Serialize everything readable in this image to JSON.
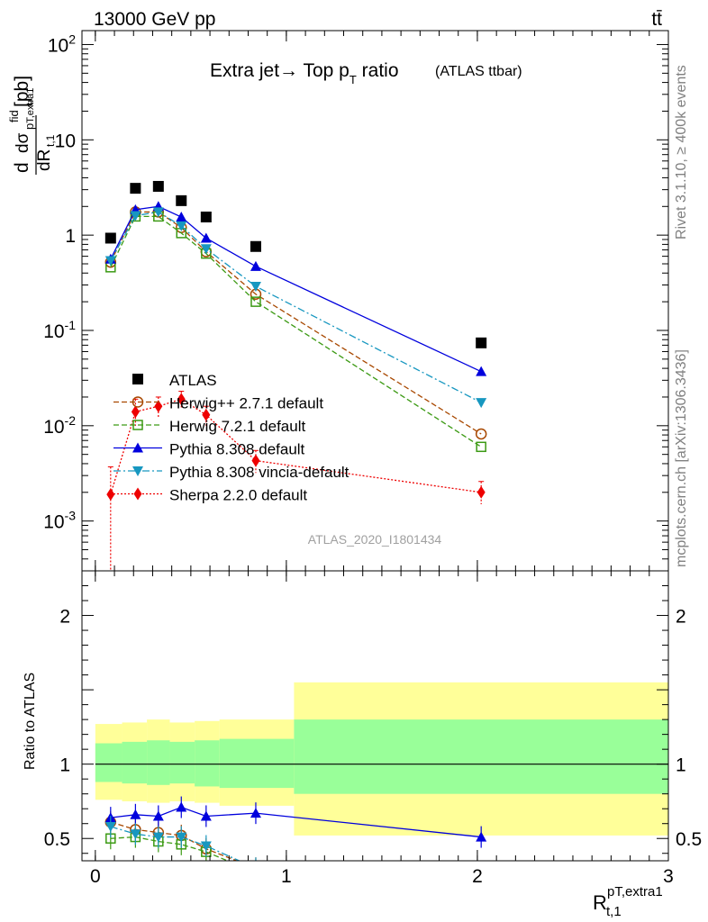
{
  "header": {
    "left": "13000 GeV pp",
    "right": "tt̄"
  },
  "side_labels": {
    "rivet": "Rivet 3.1.10, ≥ 400k events",
    "site": "mcplots.cern.ch [arXiv:1306.3436]"
  },
  "analysis_tag": "ATLAS_2020_I1801434",
  "chart_data": [
    {
      "panel": "main",
      "type": "line",
      "title_main": "Extra jet→ Top p",
      "title_sub": "T",
      "title_tail": " ratio",
      "title_small": "(ATLAS ttbar)",
      "ylabel_num": "dσ",
      "ylabel_num_sup": "fid",
      "ylabel_num_sub": "p",
      "ylabel_num_sub2": "T,extra1",
      "ylabel_den": "dR",
      "ylabel_den_sub": "t,1",
      "ylabel_unit": "[pb]",
      "ylabel_d": "d",
      "yscale": "log",
      "xlim": [
        -0.07,
        3.0
      ],
      "ylim": [
        0.0003,
        140
      ],
      "x_ticks": [
        0,
        1,
        2,
        3
      ],
      "y_ticks": [
        {
          "value": 0.001,
          "base": "10",
          "exp": "-3"
        },
        {
          "value": 0.01,
          "base": "10",
          "exp": "-2"
        },
        {
          "value": 0.1,
          "base": "10",
          "exp": "-1"
        },
        {
          "value": 1,
          "base": "1",
          "exp": ""
        },
        {
          "value": 10,
          "base": "10",
          "exp": ""
        },
        {
          "value": 100,
          "base": "10",
          "exp": "2"
        }
      ],
      "legend_position": "center-left",
      "series": [
        {
          "name": "ATLAS",
          "color": "#000000",
          "marker": "square",
          "line": "none",
          "x": [
            0.08,
            0.21,
            0.33,
            0.45,
            0.58,
            0.84,
            2.02
          ],
          "y": [
            0.93,
            3.1,
            3.25,
            2.3,
            1.55,
            0.76,
            0.074
          ]
        },
        {
          "name": "Herwig++ 2.7.1 default",
          "color": "#a84800",
          "marker": "open-circle",
          "line": "dashed",
          "x": [
            0.08,
            0.21,
            0.33,
            0.45,
            0.58,
            0.84,
            2.02
          ],
          "y": [
            0.52,
            1.75,
            1.75,
            1.2,
            0.67,
            0.24,
            0.0082
          ]
        },
        {
          "name": "Herwig 7.2.1 default",
          "color": "#3c9a14",
          "marker": "open-square",
          "line": "dashed",
          "x": [
            0.08,
            0.21,
            0.33,
            0.45,
            0.58,
            0.84,
            2.02
          ],
          "y": [
            0.46,
            1.57,
            1.57,
            1.05,
            0.64,
            0.2,
            0.006
          ]
        },
        {
          "name": "Pythia 8.308 default",
          "color": "#0000dd",
          "marker": "triangle-up",
          "line": "solid",
          "x": [
            0.08,
            0.21,
            0.33,
            0.45,
            0.58,
            0.84,
            2.02
          ],
          "y": [
            0.56,
            1.85,
            2.0,
            1.55,
            0.93,
            0.47,
            0.037
          ]
        },
        {
          "name": "Pythia 8.308 vincia-default",
          "color": "#1797c0",
          "marker": "triangle-down",
          "line": "dashdot",
          "x": [
            0.08,
            0.21,
            0.33,
            0.45,
            0.58,
            0.84,
            2.02
          ],
          "y": [
            0.54,
            1.6,
            1.75,
            1.25,
            0.72,
            0.29,
            0.0175
          ]
        },
        {
          "name": "Sherpa 2.2.0 default",
          "color": "#ee0000",
          "marker": "diamond",
          "line": "dotted",
          "x": [
            0.08,
            0.21,
            0.33,
            0.45,
            0.58,
            0.84,
            2.02
          ],
          "y": [
            0.0019,
            0.014,
            0.016,
            0.019,
            0.013,
            0.0043,
            0.002
          ],
          "err_up": [
            0.0037,
            0.019,
            0.02,
            0.023,
            0.016,
            0.0055,
            0.0026
          ],
          "err_down": [
            0.0003,
            0.01,
            0.012,
            0.015,
            0.01,
            0.0032,
            0.0015
          ]
        }
      ]
    },
    {
      "panel": "ratio",
      "type": "line",
      "ylabel": "Ratio to ATLAS",
      "xlabel_main": "R",
      "xlabel_sub": "t,1",
      "xlabel_sup": "pT,extra1",
      "xlim": [
        -0.07,
        3.0
      ],
      "ylim": [
        0.35,
        2.3
      ],
      "x_ticks": [
        0,
        1,
        2,
        3
      ],
      "y_ticks": [
        0.5,
        1,
        2
      ],
      "bands": {
        "edges": [
          0.0,
          0.14,
          0.27,
          0.39,
          0.52,
          0.65,
          1.04,
          3.0
        ],
        "yellow_low": [
          0.76,
          0.75,
          0.74,
          0.75,
          0.74,
          0.72,
          0.52
        ],
        "yellow_high": [
          1.27,
          1.28,
          1.3,
          1.28,
          1.29,
          1.3,
          1.55
        ],
        "green_low": [
          0.88,
          0.87,
          0.86,
          0.87,
          0.85,
          0.84,
          0.8
        ],
        "green_high": [
          1.14,
          1.15,
          1.16,
          1.15,
          1.16,
          1.17,
          1.3
        ],
        "yellow_color": "#ffff99",
        "green_color": "#99ff99"
      },
      "series": [
        {
          "name": "Herwig++ 2.7.1 default",
          "color": "#a84800",
          "marker": "open-circle",
          "line": "dashed",
          "x": [
            0.08,
            0.21,
            0.33,
            0.45,
            0.58,
            0.84
          ],
          "y": [
            0.61,
            0.56,
            0.54,
            0.52,
            0.43,
            0.3
          ]
        },
        {
          "name": "Herwig 7.2.1 default",
          "color": "#3c9a14",
          "marker": "open-square",
          "line": "dashed",
          "x": [
            0.08,
            0.21,
            0.33,
            0.45,
            0.58,
            0.84
          ],
          "y": [
            0.5,
            0.51,
            0.48,
            0.46,
            0.41,
            0.27
          ]
        },
        {
          "name": "Pythia 8.308 default",
          "color": "#0000dd",
          "marker": "triangle-up",
          "line": "solid",
          "x": [
            0.08,
            0.21,
            0.33,
            0.45,
            0.58,
            0.84,
            2.02
          ],
          "y": [
            0.64,
            0.66,
            0.65,
            0.71,
            0.65,
            0.67,
            0.51
          ]
        },
        {
          "name": "Pythia 8.308 vincia-default",
          "color": "#1797c0",
          "marker": "triangle-down",
          "line": "dashdot",
          "x": [
            0.08,
            0.21,
            0.33,
            0.45,
            0.58,
            0.84
          ],
          "y": [
            0.58,
            0.53,
            0.51,
            0.51,
            0.45,
            0.3
          ]
        }
      ]
    }
  ]
}
